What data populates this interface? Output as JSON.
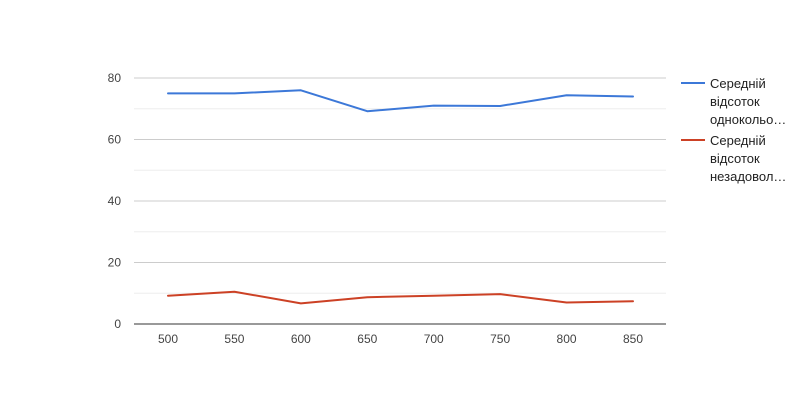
{
  "chart_data": {
    "type": "line",
    "title": "",
    "xlabel": "",
    "ylabel": "",
    "categories": [
      "500",
      "550",
      "600",
      "650",
      "700",
      "750",
      "800",
      "850"
    ],
    "ylim": [
      0,
      80
    ],
    "yticks": [
      0,
      20,
      40,
      60,
      80
    ],
    "grid": true,
    "legend_position": "right",
    "series": [
      {
        "name": "Середній відсоток однокольо…",
        "legend_lines": [
          "Середній",
          "відсоток",
          "однокольо…"
        ],
        "color": "#3c78d8",
        "values": [
          75.0,
          75.0,
          76.0,
          69.2,
          71.0,
          70.9,
          74.4,
          74.0
        ]
      },
      {
        "name": "Середній відсоток незадовол…",
        "legend_lines": [
          "Середній",
          "відсоток",
          "незадовол…"
        ],
        "color": "#cc4125",
        "values": [
          9.2,
          10.5,
          6.7,
          8.7,
          9.2,
          9.7,
          7.0,
          7.4
        ]
      }
    ]
  }
}
